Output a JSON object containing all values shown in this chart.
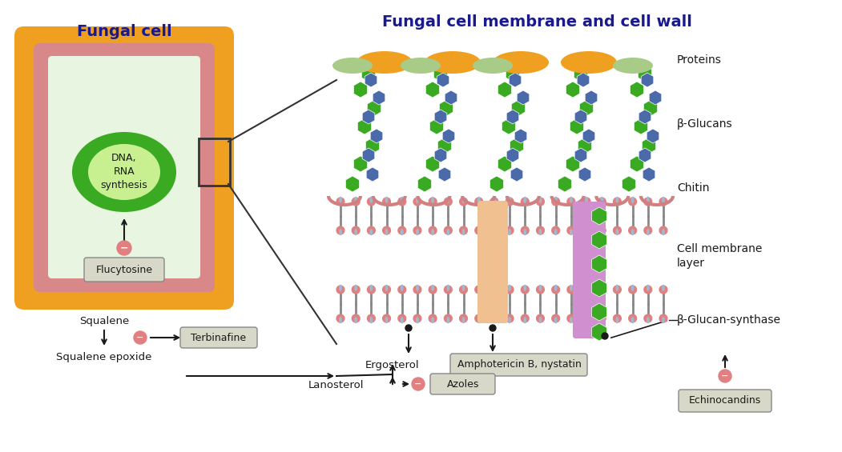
{
  "title_left": "Fungal cell",
  "title_right": "Fungal cell membrane and cell wall",
  "title_color": "#1a1a8c",
  "title_fontsize": 14,
  "bg_color": "#ffffff",
  "cell": {
    "outer_color": "#f0a020",
    "inner_color": "#e8a0a0",
    "cytoplasm_color": "#e8f5e0",
    "nucleus_outer_color": "#4aaa22",
    "nucleus_inner_color": "#c8f0b0",
    "nucleus_text": "DNA,\nRNA\nsynthesis",
    "nucleus_text_color": "#1a1a1a"
  },
  "labels": {
    "proteins": "Proteins",
    "beta_glucans": "β-Glucans",
    "chitin": "Chitin",
    "cell_membrane": "Cell membrane\nlayer",
    "beta_glucan_synthase": "β-Glucan-synthase",
    "ergosterol": "Ergosterol",
    "amphotericin": "Amphotericin B, nystatin",
    "azoles": "Azoles",
    "echinocandins": "Echinocandins",
    "flucytosine": "Flucytosine",
    "squalene": "Squalene",
    "squalene_epoxide": "Squalene epoxide",
    "terbinafine": "Terbinafine",
    "lanosterol": "Lanosterol"
  },
  "colors": {
    "orange_protein": "#f0a020",
    "green_glucan": "#3aaa22",
    "blue_glucan": "#4a6aaa",
    "pink_chitin": "#d08080",
    "gray_membrane": "#a0a0a0",
    "blue_head": "#a0b8d0",
    "pink_head": "#e08080",
    "peach_ergosterol": "#f0c090",
    "purple_echinocandin": "#d090d0",
    "light_green_protein": "#a8cc88",
    "drug_box_color": "#e0e0d0",
    "inhibit_color": "#e08080",
    "arrow_color": "#1a1a1a",
    "label_color": "#1a1a1a"
  }
}
